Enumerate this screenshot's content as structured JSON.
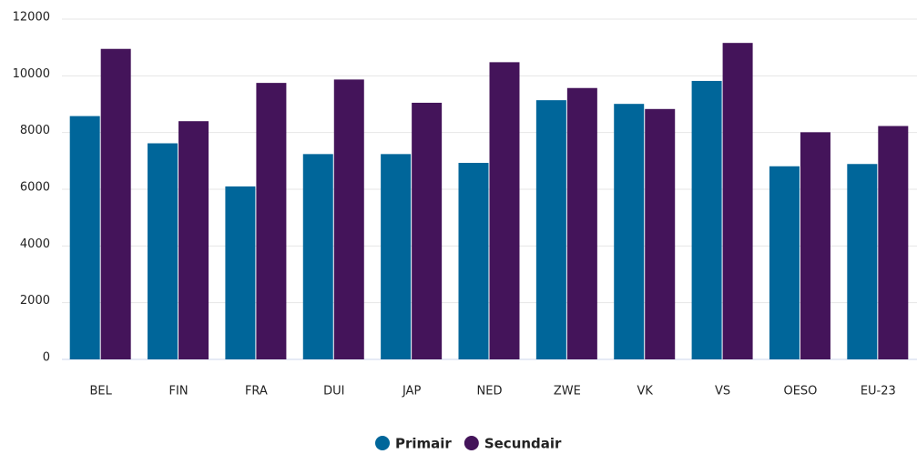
{
  "chart_data": {
    "type": "bar",
    "categories": [
      "BEL",
      "FIN",
      "FRA",
      "DUI",
      "JAP",
      "NED",
      "ZWE",
      "VK",
      "VS",
      "OESO",
      "EU-23"
    ],
    "series": [
      {
        "name": "Primair",
        "color": "#00669a",
        "values": [
          8580,
          7620,
          6100,
          7240,
          7240,
          6930,
          9140,
          9010,
          9820,
          6810,
          6890
        ]
      },
      {
        "name": "Secundair",
        "color": "#44145a",
        "values": [
          10950,
          8400,
          9750,
          9870,
          9050,
          10480,
          9570,
          8830,
          11160,
          8010,
          8230
        ]
      }
    ],
    "ylim": [
      0,
      12000
    ],
    "yticks": [
      0,
      2000,
      4000,
      6000,
      8000,
      10000,
      12000
    ],
    "grid": true,
    "legend": "bottom"
  }
}
